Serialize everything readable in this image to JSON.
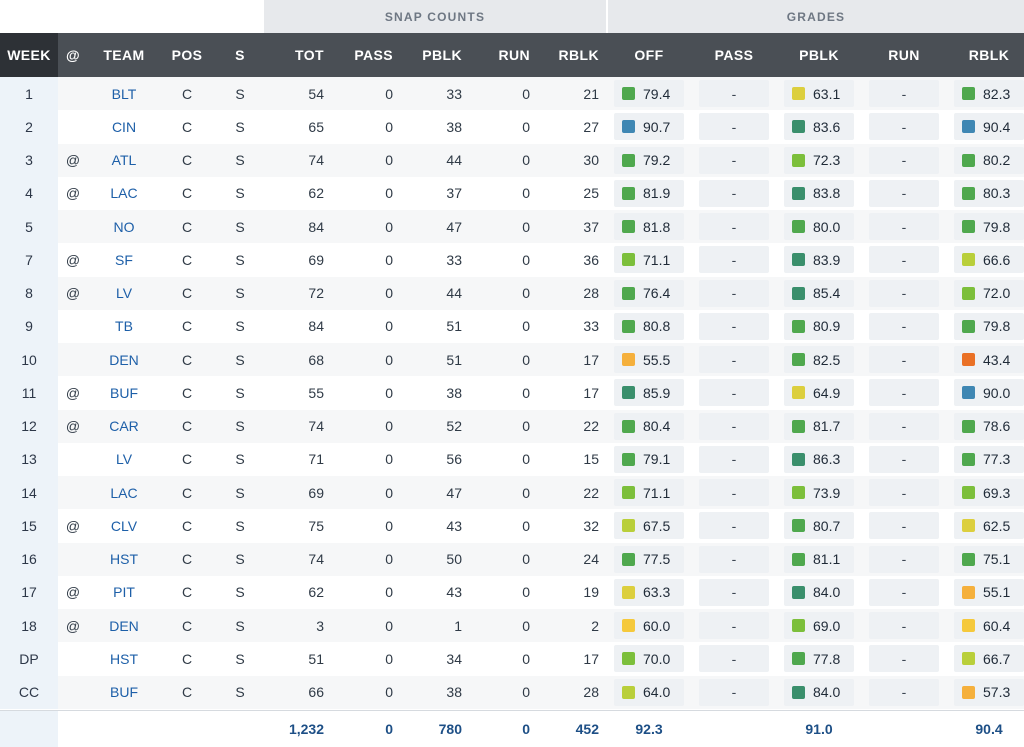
{
  "group_headers": {
    "snap_counts": "SNAP COUNTS",
    "grades": "GRADES"
  },
  "columns": {
    "week": "WEEK",
    "at": "@",
    "team": "TEAM",
    "pos": "POS",
    "s": "S",
    "tot": "TOT",
    "pass": "PASS",
    "pblk": "PBLK",
    "run": "RUN",
    "rblk": "RBLK",
    "g_off": "OFF",
    "g_pass": "PASS",
    "g_pblk": "PBLK",
    "g_run": "RUN",
    "g_rblk": "RBLK"
  },
  "grade_colors": {
    "blue": "#3f87b3",
    "teal": "#3a8f6c",
    "green": "#4fa84e",
    "lightgreen": "#7cbf3b",
    "yellowgreen": "#b9cf3a",
    "yellow": "#dccf3e",
    "gold": "#f5c93c",
    "orange": "#f5b03c",
    "red": "#ea7126"
  },
  "rows": [
    {
      "week": "1",
      "at": "",
      "team": "BLT",
      "pos": "C",
      "s": "S",
      "tot": "54",
      "pass": "0",
      "pblk": "33",
      "run": "0",
      "rblk": "21",
      "off": {
        "v": "79.4",
        "c": "green"
      },
      "gpass": "-",
      "gpblk": {
        "v": "63.1",
        "c": "yellow"
      },
      "grun": "-",
      "grblk": {
        "v": "82.3",
        "c": "green"
      }
    },
    {
      "week": "2",
      "at": "",
      "team": "CIN",
      "pos": "C",
      "s": "S",
      "tot": "65",
      "pass": "0",
      "pblk": "38",
      "run": "0",
      "rblk": "27",
      "off": {
        "v": "90.7",
        "c": "blue"
      },
      "gpass": "-",
      "gpblk": {
        "v": "83.6",
        "c": "teal"
      },
      "grun": "-",
      "grblk": {
        "v": "90.4",
        "c": "blue"
      }
    },
    {
      "week": "3",
      "at": "@",
      "team": "ATL",
      "pos": "C",
      "s": "S",
      "tot": "74",
      "pass": "0",
      "pblk": "44",
      "run": "0",
      "rblk": "30",
      "off": {
        "v": "79.2",
        "c": "green"
      },
      "gpass": "-",
      "gpblk": {
        "v": "72.3",
        "c": "lightgreen"
      },
      "grun": "-",
      "grblk": {
        "v": "80.2",
        "c": "green"
      }
    },
    {
      "week": "4",
      "at": "@",
      "team": "LAC",
      "pos": "C",
      "s": "S",
      "tot": "62",
      "pass": "0",
      "pblk": "37",
      "run": "0",
      "rblk": "25",
      "off": {
        "v": "81.9",
        "c": "green"
      },
      "gpass": "-",
      "gpblk": {
        "v": "83.8",
        "c": "teal"
      },
      "grun": "-",
      "grblk": {
        "v": "80.3",
        "c": "green"
      }
    },
    {
      "week": "5",
      "at": "",
      "team": "NO",
      "pos": "C",
      "s": "S",
      "tot": "84",
      "pass": "0",
      "pblk": "47",
      "run": "0",
      "rblk": "37",
      "off": {
        "v": "81.8",
        "c": "green"
      },
      "gpass": "-",
      "gpblk": {
        "v": "80.0",
        "c": "green"
      },
      "grun": "-",
      "grblk": {
        "v": "79.8",
        "c": "green"
      }
    },
    {
      "week": "7",
      "at": "@",
      "team": "SF",
      "pos": "C",
      "s": "S",
      "tot": "69",
      "pass": "0",
      "pblk": "33",
      "run": "0",
      "rblk": "36",
      "off": {
        "v": "71.1",
        "c": "lightgreen"
      },
      "gpass": "-",
      "gpblk": {
        "v": "83.9",
        "c": "teal"
      },
      "grun": "-",
      "grblk": {
        "v": "66.6",
        "c": "yellowgreen"
      }
    },
    {
      "week": "8",
      "at": "@",
      "team": "LV",
      "pos": "C",
      "s": "S",
      "tot": "72",
      "pass": "0",
      "pblk": "44",
      "run": "0",
      "rblk": "28",
      "off": {
        "v": "76.4",
        "c": "green"
      },
      "gpass": "-",
      "gpblk": {
        "v": "85.4",
        "c": "teal"
      },
      "grun": "-",
      "grblk": {
        "v": "72.0",
        "c": "lightgreen"
      }
    },
    {
      "week": "9",
      "at": "",
      "team": "TB",
      "pos": "C",
      "s": "S",
      "tot": "84",
      "pass": "0",
      "pblk": "51",
      "run": "0",
      "rblk": "33",
      "off": {
        "v": "80.8",
        "c": "green"
      },
      "gpass": "-",
      "gpblk": {
        "v": "80.9",
        "c": "green"
      },
      "grun": "-",
      "grblk": {
        "v": "79.8",
        "c": "green"
      }
    },
    {
      "week": "10",
      "at": "",
      "team": "DEN",
      "pos": "C",
      "s": "S",
      "tot": "68",
      "pass": "0",
      "pblk": "51",
      "run": "0",
      "rblk": "17",
      "off": {
        "v": "55.5",
        "c": "orange"
      },
      "gpass": "-",
      "gpblk": {
        "v": "82.5",
        "c": "green"
      },
      "grun": "-",
      "grblk": {
        "v": "43.4",
        "c": "red"
      }
    },
    {
      "week": "11",
      "at": "@",
      "team": "BUF",
      "pos": "C",
      "s": "S",
      "tot": "55",
      "pass": "0",
      "pblk": "38",
      "run": "0",
      "rblk": "17",
      "off": {
        "v": "85.9",
        "c": "teal"
      },
      "gpass": "-",
      "gpblk": {
        "v": "64.9",
        "c": "yellow"
      },
      "grun": "-",
      "grblk": {
        "v": "90.0",
        "c": "blue"
      }
    },
    {
      "week": "12",
      "at": "@",
      "team": "CAR",
      "pos": "C",
      "s": "S",
      "tot": "74",
      "pass": "0",
      "pblk": "52",
      "run": "0",
      "rblk": "22",
      "off": {
        "v": "80.4",
        "c": "green"
      },
      "gpass": "-",
      "gpblk": {
        "v": "81.7",
        "c": "green"
      },
      "grun": "-",
      "grblk": {
        "v": "78.6",
        "c": "green"
      }
    },
    {
      "week": "13",
      "at": "",
      "team": "LV",
      "pos": "C",
      "s": "S",
      "tot": "71",
      "pass": "0",
      "pblk": "56",
      "run": "0",
      "rblk": "15",
      "off": {
        "v": "79.1",
        "c": "green"
      },
      "gpass": "-",
      "gpblk": {
        "v": "86.3",
        "c": "teal"
      },
      "grun": "-",
      "grblk": {
        "v": "77.3",
        "c": "green"
      }
    },
    {
      "week": "14",
      "at": "",
      "team": "LAC",
      "pos": "C",
      "s": "S",
      "tot": "69",
      "pass": "0",
      "pblk": "47",
      "run": "0",
      "rblk": "22",
      "off": {
        "v": "71.1",
        "c": "lightgreen"
      },
      "gpass": "-",
      "gpblk": {
        "v": "73.9",
        "c": "lightgreen"
      },
      "grun": "-",
      "grblk": {
        "v": "69.3",
        "c": "lightgreen"
      }
    },
    {
      "week": "15",
      "at": "@",
      "team": "CLV",
      "pos": "C",
      "s": "S",
      "tot": "75",
      "pass": "0",
      "pblk": "43",
      "run": "0",
      "rblk": "32",
      "off": {
        "v": "67.5",
        "c": "yellowgreen"
      },
      "gpass": "-",
      "gpblk": {
        "v": "80.7",
        "c": "green"
      },
      "grun": "-",
      "grblk": {
        "v": "62.5",
        "c": "yellow"
      }
    },
    {
      "week": "16",
      "at": "",
      "team": "HST",
      "pos": "C",
      "s": "S",
      "tot": "74",
      "pass": "0",
      "pblk": "50",
      "run": "0",
      "rblk": "24",
      "off": {
        "v": "77.5",
        "c": "green"
      },
      "gpass": "-",
      "gpblk": {
        "v": "81.1",
        "c": "green"
      },
      "grun": "-",
      "grblk": {
        "v": "75.1",
        "c": "green"
      }
    },
    {
      "week": "17",
      "at": "@",
      "team": "PIT",
      "pos": "C",
      "s": "S",
      "tot": "62",
      "pass": "0",
      "pblk": "43",
      "run": "0",
      "rblk": "19",
      "off": {
        "v": "63.3",
        "c": "yellow"
      },
      "gpass": "-",
      "gpblk": {
        "v": "84.0",
        "c": "teal"
      },
      "grun": "-",
      "grblk": {
        "v": "55.1",
        "c": "orange"
      }
    },
    {
      "week": "18",
      "at": "@",
      "team": "DEN",
      "pos": "C",
      "s": "S",
      "tot": "3",
      "pass": "0",
      "pblk": "1",
      "run": "0",
      "rblk": "2",
      "off": {
        "v": "60.0",
        "c": "gold"
      },
      "gpass": "-",
      "gpblk": {
        "v": "69.0",
        "c": "lightgreen"
      },
      "grun": "-",
      "grblk": {
        "v": "60.4",
        "c": "gold"
      }
    },
    {
      "week": "DP",
      "at": "",
      "team": "HST",
      "pos": "C",
      "s": "S",
      "tot": "51",
      "pass": "0",
      "pblk": "34",
      "run": "0",
      "rblk": "17",
      "off": {
        "v": "70.0",
        "c": "lightgreen"
      },
      "gpass": "-",
      "gpblk": {
        "v": "77.8",
        "c": "green"
      },
      "grun": "-",
      "grblk": {
        "v": "66.7",
        "c": "yellowgreen"
      }
    },
    {
      "week": "CC",
      "at": "",
      "team": "BUF",
      "pos": "C",
      "s": "S",
      "tot": "66",
      "pass": "0",
      "pblk": "38",
      "run": "0",
      "rblk": "28",
      "off": {
        "v": "64.0",
        "c": "yellowgreen"
      },
      "gpass": "-",
      "gpblk": {
        "v": "84.0",
        "c": "teal"
      },
      "grun": "-",
      "grblk": {
        "v": "57.3",
        "c": "orange"
      }
    }
  ],
  "totals": {
    "tot": "1,232",
    "pass": "0",
    "pblk": "780",
    "run": "0",
    "rblk": "452",
    "off": "92.3",
    "pblk_grade": "91.0",
    "rblk_grade": "90.4"
  }
}
